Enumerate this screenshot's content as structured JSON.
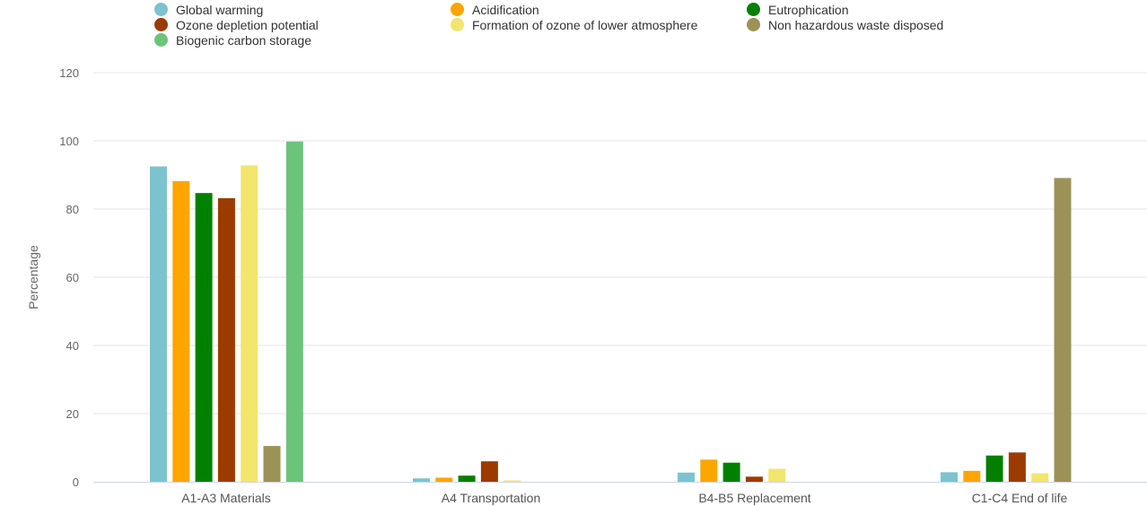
{
  "chart_data": {
    "type": "bar",
    "ylabel": "Percentage",
    "ylim": [
      0,
      120
    ],
    "yticks": [
      0,
      20,
      40,
      60,
      80,
      100,
      120
    ],
    "grid": true,
    "legend_position": "top",
    "categories": [
      "A1-A3 Materials",
      "A4 Transportation",
      "B4-B5 Replacement",
      "C1-C4 End of life"
    ],
    "series": [
      {
        "name": "Global warming",
        "color": "#7cc3cf",
        "values": [
          92.5,
          1.0,
          2.7,
          2.8
        ]
      },
      {
        "name": "Acidification",
        "color": "#ffa500",
        "values": [
          88.2,
          1.2,
          6.5,
          3.2
        ]
      },
      {
        "name": "Eutrophication",
        "color": "#008000",
        "values": [
          84.7,
          1.8,
          5.6,
          7.7
        ]
      },
      {
        "name": "Ozone depletion potential",
        "color": "#9a3c00",
        "values": [
          83.2,
          6.0,
          1.5,
          8.6
        ]
      },
      {
        "name": "Formation of ozone of lower atmosphere",
        "color": "#f2e56e",
        "values": [
          92.8,
          0.4,
          3.8,
          2.5
        ]
      },
      {
        "name": "Non hazardous waste disposed",
        "color": "#9c9256",
        "values": [
          10.5,
          0,
          0,
          89.1
        ]
      },
      {
        "name": "Biogenic carbon storage",
        "color": "#6cc47a",
        "values": [
          99.8,
          0,
          0,
          0
        ]
      }
    ]
  }
}
